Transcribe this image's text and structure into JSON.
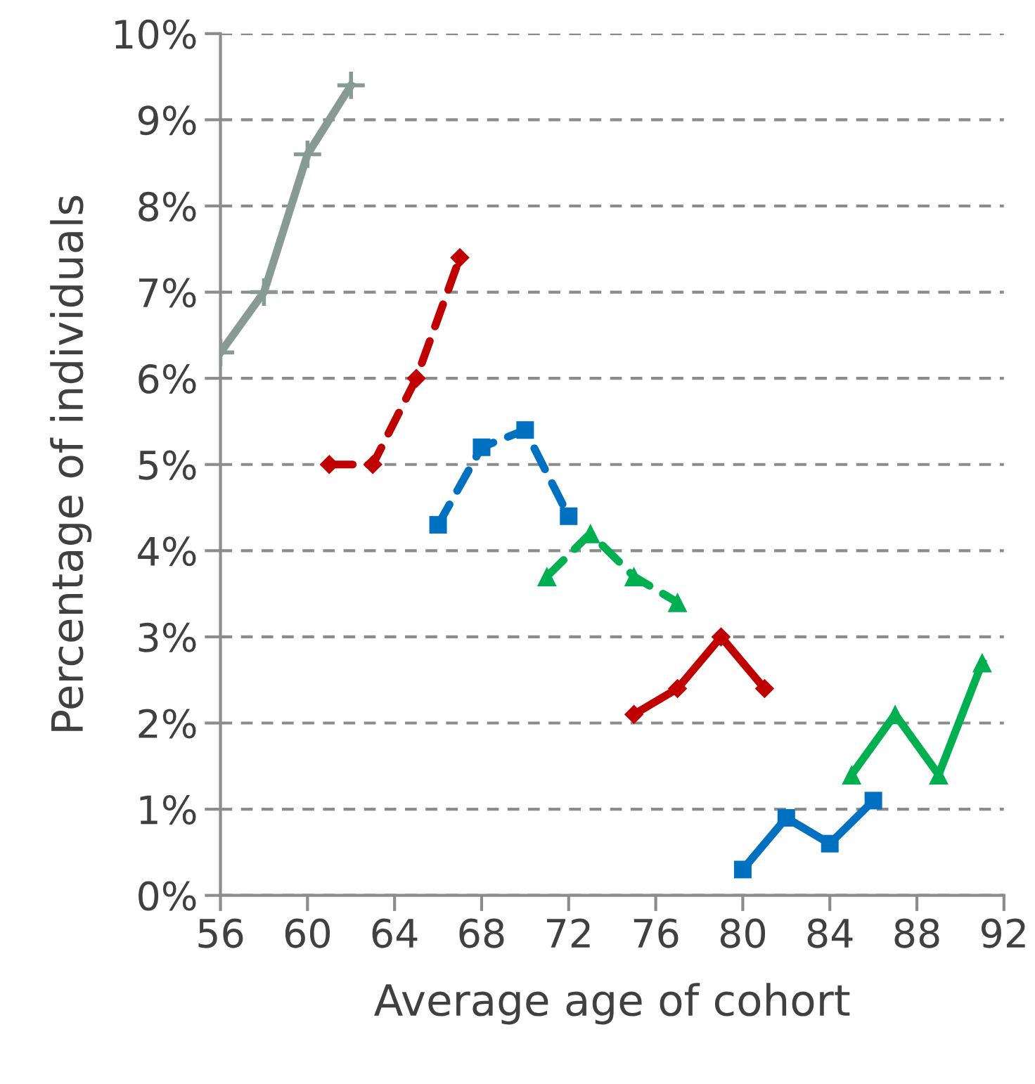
{
  "chart_data": {
    "type": "line",
    "xlabel": "Average age of cohort",
    "ylabel": "Percentage of individuals",
    "xlim": [
      56,
      92
    ],
    "xticks": [
      56,
      60,
      64,
      68,
      72,
      76,
      80,
      84,
      88,
      92
    ],
    "ylim": [
      0,
      10
    ],
    "yticks": [
      {
        "value": 0,
        "label": "0%"
      },
      {
        "value": 1,
        "label": "1%"
      },
      {
        "value": 2,
        "label": "2%"
      },
      {
        "value": 3,
        "label": "3%"
      },
      {
        "value": 4,
        "label": "4%"
      },
      {
        "value": 5,
        "label": "5%"
      },
      {
        "value": 6,
        "label": "6%"
      },
      {
        "value": 7,
        "label": "7%"
      },
      {
        "value": 8,
        "label": "8%"
      },
      {
        "value": 9,
        "label": "9%"
      },
      {
        "value": 10,
        "label": "10%"
      }
    ],
    "grid": "y",
    "series": [
      {
        "color": "#879b94",
        "marker": "cross",
        "line_style": "solid",
        "x": [
          56,
          58,
          60,
          62
        ],
        "values": [
          6.3,
          7.0,
          8.6,
          9.4
        ]
      },
      {
        "color": "#c00000",
        "marker": "diamond",
        "line_style": "dashed",
        "x": [
          61,
          63,
          65,
          67
        ],
        "values": [
          5.0,
          5.0,
          6.0,
          7.4
        ]
      },
      {
        "color": "#0070c0",
        "marker": "square",
        "line_style": "dashed",
        "x": [
          66,
          68,
          70,
          72
        ],
        "values": [
          4.3,
          5.2,
          5.4,
          4.4
        ]
      },
      {
        "color": "#00b050",
        "marker": "triangle",
        "line_style": "dashed",
        "x": [
          71,
          73,
          75,
          77
        ],
        "values": [
          3.7,
          4.2,
          3.7,
          3.4
        ]
      },
      {
        "color": "#c00000",
        "marker": "diamond",
        "line_style": "solid",
        "x": [
          75,
          77,
          79,
          81
        ],
        "values": [
          2.1,
          2.4,
          3.0,
          2.4
        ]
      },
      {
        "color": "#0070c0",
        "marker": "square",
        "line_style": "solid",
        "x": [
          80,
          82,
          84,
          86
        ],
        "values": [
          0.3,
          0.9,
          0.6,
          1.1
        ]
      },
      {
        "color": "#00b050",
        "marker": "triangle",
        "line_style": "solid",
        "x": [
          85,
          87,
          89,
          91
        ],
        "values": [
          1.4,
          2.1,
          1.4,
          2.7
        ]
      }
    ]
  }
}
